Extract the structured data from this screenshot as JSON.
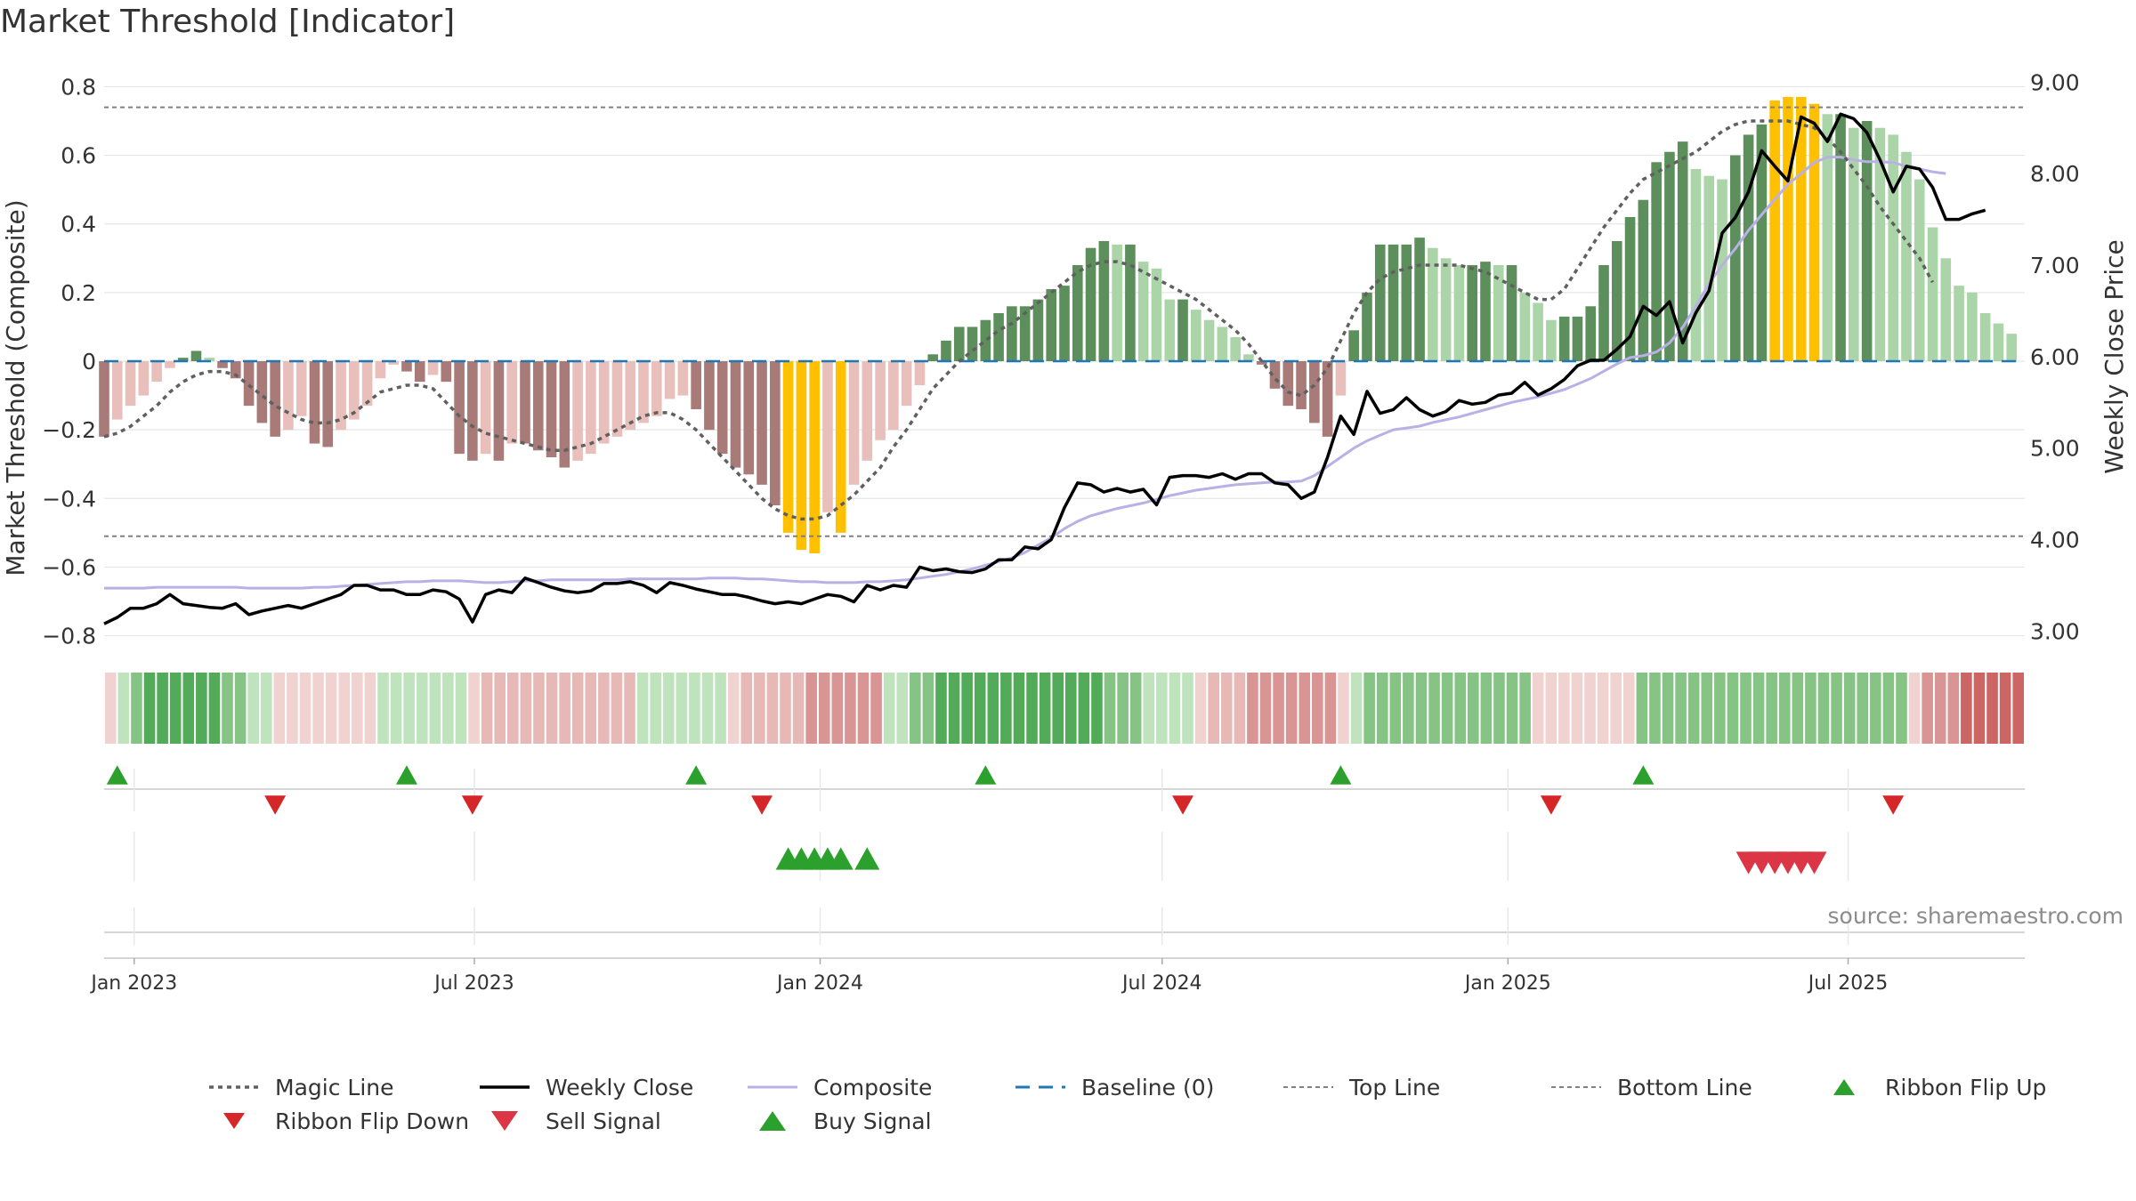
{
  "title": "Market Threshold [Indicator]",
  "source": "source: sharemaestro.com",
  "colors": {
    "bg": "#ffffff",
    "grid": "#e6e6e6",
    "baseline": "#1f77b4",
    "ref_line": "#808080",
    "magic_line": "#606060",
    "weekly_close": "#000000",
    "composite": "#b9b0e6",
    "bar_neg_strong": "#a87b78",
    "bar_neg_weak": "#e8bfbb",
    "bar_pos_strong": "#5c8f5c",
    "bar_pos_weak": "#abd5a8",
    "bar_extreme": "#ffc000",
    "buy": "#2ca02c",
    "sell": "#d62728"
  },
  "chart_data": {
    "type": "bar",
    "title": "Market Threshold [Indicator]",
    "ylabel": "Market Threshold (Composite)",
    "y2label": "Weekly Close Price",
    "ylim": [
      -0.84,
      0.84
    ],
    "y2lim": [
      2.8,
      9.1
    ],
    "yticks": [
      -0.8,
      -0.6,
      -0.4,
      -0.2,
      0,
      0.2,
      0.4,
      0.6,
      0.8
    ],
    "ytick_labels": [
      "−0.8",
      "−0.6",
      "−0.4",
      "−0.2",
      "0",
      "0.2",
      "0.4",
      "0.6",
      "0.8"
    ],
    "y2ticks": [
      3,
      4,
      5,
      6,
      7,
      8,
      9
    ],
    "y2tick_labels": [
      "3.00",
      "4.00",
      "5.00",
      "6.00",
      "7.00",
      "8.00",
      "9.00"
    ],
    "x_range": [
      "2022-12-16",
      "2025-10-03"
    ],
    "xticks": [
      "2023-01-01",
      "2023-07-01",
      "2024-01-01",
      "2024-07-01",
      "2025-01-01",
      "2025-07-01"
    ],
    "xtick_labels": [
      "Jan 2023",
      "Jul 2023",
      "Jan 2024",
      "Jul 2024",
      "Jan 2025",
      "Jul 2025"
    ],
    "grid": true,
    "legend_position": "bottom",
    "top_line": 0.74,
    "bottom_line": -0.51,
    "baseline": 0,
    "start_date": "2022-12-16",
    "bars": [
      -0.22,
      -0.17,
      -0.13,
      -0.1,
      -0.06,
      -0.02,
      0.01,
      0.03,
      0.01,
      -0.02,
      -0.05,
      -0.13,
      -0.18,
      -0.22,
      -0.2,
      -0.16,
      -0.24,
      -0.25,
      -0.2,
      -0.17,
      -0.13,
      -0.05,
      -0.01,
      -0.03,
      -0.06,
      -0.04,
      -0.06,
      -0.27,
      -0.29,
      -0.27,
      -0.29,
      -0.24,
      -0.24,
      -0.26,
      -0.28,
      -0.31,
      -0.29,
      -0.27,
      -0.24,
      -0.22,
      -0.2,
      -0.18,
      -0.16,
      -0.11,
      -0.1,
      -0.14,
      -0.2,
      -0.27,
      -0.31,
      -0.33,
      -0.36,
      -0.42,
      -0.5,
      -0.55,
      -0.56,
      -0.44,
      -0.5,
      -0.36,
      -0.29,
      -0.23,
      -0.2,
      -0.13,
      -0.07,
      0.02,
      0.06,
      0.1,
      0.1,
      0.12,
      0.14,
      0.16,
      0.16,
      0.18,
      0.21,
      0.22,
      0.28,
      0.33,
      0.35,
      0.34,
      0.34,
      0.29,
      0.27,
      0.18,
      0.18,
      0.15,
      0.12,
      0.1,
      0.07,
      0.02,
      -0.01,
      -0.08,
      -0.13,
      -0.14,
      -0.18,
      -0.22,
      -0.1,
      0.09,
      0.2,
      0.34,
      0.34,
      0.34,
      0.36,
      0.33,
      0.3,
      0.28,
      0.28,
      0.29,
      0.28,
      0.28,
      0.2,
      0.17,
      0.12,
      0.13,
      0.13,
      0.16,
      0.28,
      0.35,
      0.42,
      0.47,
      0.58,
      0.61,
      0.64,
      0.56,
      0.54,
      0.53,
      0.6,
      0.66,
      0.69,
      0.76,
      0.77,
      0.77,
      0.75,
      0.72,
      0.72,
      0.68,
      0.7,
      0.68,
      0.66,
      0.61,
      0.53,
      0.39,
      0.3,
      0.22,
      0.2,
      0.14,
      0.11,
      0.08
    ],
    "series": [
      {
        "name": "Magic Line",
        "values": [
          -0.22,
          -0.21,
          -0.19,
          -0.16,
          -0.13,
          -0.09,
          -0.06,
          -0.04,
          -0.03,
          -0.03,
          -0.04,
          -0.07,
          -0.1,
          -0.13,
          -0.15,
          -0.17,
          -0.18,
          -0.18,
          -0.17,
          -0.15,
          -0.12,
          -0.09,
          -0.08,
          -0.07,
          -0.07,
          -0.08,
          -0.12,
          -0.16,
          -0.19,
          -0.21,
          -0.22,
          -0.23,
          -0.24,
          -0.25,
          -0.26,
          -0.26,
          -0.25,
          -0.24,
          -0.22,
          -0.2,
          -0.18,
          -0.16,
          -0.15,
          -0.15,
          -0.17,
          -0.2,
          -0.24,
          -0.28,
          -0.32,
          -0.36,
          -0.4,
          -0.43,
          -0.45,
          -0.46,
          -0.46,
          -0.45,
          -0.42,
          -0.39,
          -0.35,
          -0.31,
          -0.25,
          -0.2,
          -0.14,
          -0.08,
          -0.04,
          0.0,
          0.03,
          0.06,
          0.09,
          0.11,
          0.14,
          0.17,
          0.2,
          0.23,
          0.26,
          0.28,
          0.29,
          0.29,
          0.28,
          0.26,
          0.24,
          0.22,
          0.2,
          0.18,
          0.15,
          0.12,
          0.09,
          0.05,
          0.0,
          -0.05,
          -0.09,
          -0.1,
          -0.07,
          -0.02,
          0.06,
          0.14,
          0.2,
          0.24,
          0.26,
          0.27,
          0.28,
          0.28,
          0.28,
          0.28,
          0.27,
          0.26,
          0.24,
          0.22,
          0.2,
          0.18,
          0.18,
          0.21,
          0.27,
          0.33,
          0.39,
          0.44,
          0.49,
          0.53,
          0.55,
          0.57,
          0.59,
          0.61,
          0.64,
          0.67,
          0.69,
          0.7,
          0.7,
          0.7,
          0.7,
          0.69,
          0.68,
          0.65,
          0.61,
          0.56,
          0.51,
          0.45,
          0.4,
          0.35,
          0.3,
          0.23
        ]
      },
      {
        "name": "Weekly Close",
        "axis": "right",
        "values": [
          3.08,
          3.15,
          3.25,
          3.25,
          3.3,
          3.4,
          3.3,
          3.28,
          3.26,
          3.25,
          3.3,
          3.18,
          3.22,
          3.25,
          3.28,
          3.25,
          3.3,
          3.35,
          3.4,
          3.5,
          3.5,
          3.45,
          3.45,
          3.4,
          3.4,
          3.45,
          3.43,
          3.35,
          3.1,
          3.4,
          3.45,
          3.42,
          3.58,
          3.53,
          3.48,
          3.44,
          3.42,
          3.44,
          3.52,
          3.52,
          3.54,
          3.5,
          3.42,
          3.53,
          3.5,
          3.46,
          3.43,
          3.4,
          3.4,
          3.37,
          3.33,
          3.3,
          3.32,
          3.3,
          3.35,
          3.4,
          3.38,
          3.32,
          3.5,
          3.45,
          3.5,
          3.48,
          3.7,
          3.66,
          3.68,
          3.65,
          3.64,
          3.68,
          3.78,
          3.78,
          3.92,
          3.9,
          4.0,
          4.35,
          4.62,
          4.6,
          4.52,
          4.56,
          4.52,
          4.55,
          4.38,
          4.68,
          4.7,
          4.7,
          4.68,
          4.72,
          4.66,
          4.72,
          4.72,
          4.62,
          4.6,
          4.45,
          4.52,
          4.9,
          5.35,
          5.15,
          5.62,
          5.38,
          5.42,
          5.55,
          5.42,
          5.35,
          5.4,
          5.52,
          5.48,
          5.5,
          5.58,
          5.6,
          5.72,
          5.58,
          5.65,
          5.75,
          5.9,
          5.96,
          5.96,
          6.08,
          6.22,
          6.55,
          6.45,
          6.6,
          6.15,
          6.48,
          6.72,
          7.35,
          7.52,
          7.8,
          8.25,
          8.08,
          7.92,
          8.62,
          8.55,
          8.35,
          8.65,
          8.6,
          8.45,
          8.15,
          7.8,
          8.08,
          8.05,
          7.85,
          7.5,
          7.5,
          7.56,
          7.6
        ]
      },
      {
        "name": "Composite",
        "axis": "right",
        "values": [
          3.47,
          3.47,
          3.47,
          3.47,
          3.48,
          3.48,
          3.48,
          3.48,
          3.48,
          3.48,
          3.48,
          3.47,
          3.47,
          3.47,
          3.47,
          3.47,
          3.48,
          3.48,
          3.49,
          3.5,
          3.51,
          3.52,
          3.53,
          3.54,
          3.54,
          3.55,
          3.55,
          3.55,
          3.54,
          3.53,
          3.53,
          3.54,
          3.55,
          3.55,
          3.56,
          3.56,
          3.56,
          3.56,
          3.56,
          3.56,
          3.57,
          3.57,
          3.57,
          3.57,
          3.57,
          3.57,
          3.58,
          3.58,
          3.58,
          3.57,
          3.57,
          3.56,
          3.55,
          3.54,
          3.54,
          3.53,
          3.53,
          3.53,
          3.54,
          3.54,
          3.55,
          3.56,
          3.58,
          3.6,
          3.62,
          3.65,
          3.68,
          3.72,
          3.76,
          3.8,
          3.86,
          3.94,
          4.02,
          4.12,
          4.2,
          4.26,
          4.3,
          4.34,
          4.37,
          4.4,
          4.44,
          4.48,
          4.51,
          4.54,
          4.56,
          4.58,
          4.6,
          4.61,
          4.62,
          4.63,
          4.63,
          4.64,
          4.7,
          4.8,
          4.9,
          5.0,
          5.08,
          5.14,
          5.2,
          5.22,
          5.24,
          5.28,
          5.31,
          5.34,
          5.38,
          5.42,
          5.46,
          5.5,
          5.53,
          5.56,
          5.6,
          5.64,
          5.7,
          5.76,
          5.84,
          5.92,
          5.99,
          6.01,
          6.05,
          6.15,
          6.32,
          6.55,
          6.8,
          7.0,
          7.18,
          7.38,
          7.55,
          7.72,
          7.88,
          8.0,
          8.12,
          8.18,
          8.18,
          8.15,
          8.13,
          8.13,
          8.12,
          8.08,
          8.05,
          8.02,
          8.0
        ]
      }
    ],
    "ribbon": [
      "pale-red",
      "pale-green",
      "mid-green",
      "green",
      "green",
      "green",
      "green",
      "green",
      "green",
      "mid-green",
      "mid-green",
      "pale-green",
      "pale-green",
      "pale-red",
      "pale-red",
      "pale-red",
      "pale-red",
      "pale-red",
      "pale-red",
      "pale-red",
      "pale-red",
      "pale-green",
      "pale-green",
      "pale-green",
      "pale-green",
      "pale-green",
      "pale-green",
      "pale-green",
      "pale-red",
      "light-red",
      "light-red",
      "light-red",
      "light-red",
      "light-red",
      "light-red",
      "light-red",
      "light-red",
      "light-red",
      "light-red",
      "light-red",
      "light-red",
      "pale-green",
      "pale-green",
      "pale-green",
      "pale-green",
      "pale-green",
      "pale-green",
      "pale-green",
      "pale-red",
      "light-red",
      "light-red",
      "light-red",
      "light-red",
      "light-red",
      "mid-red",
      "mid-red",
      "mid-red",
      "mid-red",
      "mid-red",
      "mid-red",
      "pale-green",
      "pale-green",
      "mid-green",
      "mid-green",
      "green",
      "green",
      "green",
      "green",
      "green",
      "green",
      "green",
      "green",
      "green",
      "green",
      "green",
      "green",
      "green",
      "mid-green",
      "mid-green",
      "mid-green",
      "pale-green",
      "pale-green",
      "pale-green",
      "pale-green",
      "pale-red",
      "light-red",
      "light-red",
      "light-red",
      "mid-red",
      "mid-red",
      "mid-red",
      "mid-red",
      "mid-red",
      "mid-red",
      "mid-red",
      "pale-red",
      "pale-green",
      "mid-green",
      "mid-green",
      "mid-green",
      "mid-green",
      "mid-green",
      "mid-green",
      "mid-green",
      "mid-green",
      "mid-green",
      "mid-green",
      "mid-green",
      "mid-green",
      "mid-green",
      "pale-red",
      "pale-red",
      "pale-red",
      "pale-red",
      "pale-red",
      "pale-red",
      "pale-red",
      "pale-red",
      "mid-green",
      "mid-green",
      "mid-green",
      "mid-green",
      "mid-green",
      "mid-green",
      "mid-green",
      "mid-green",
      "mid-green",
      "mid-green",
      "mid-green",
      "mid-green",
      "mid-green",
      "mid-green",
      "mid-green",
      "mid-green",
      "mid-green",
      "mid-green",
      "mid-green",
      "mid-green",
      "mid-green",
      "pale-red",
      "mid-red",
      "mid-red",
      "mid-red",
      "strong-red",
      "strong-red",
      "strong-red",
      "strong-red",
      "strong-red"
    ],
    "ribbon_flip_up": [
      "2022-12-23",
      "2023-05-26",
      "2023-10-27",
      "2024-03-29",
      "2024-10-04",
      "2025-03-14"
    ],
    "ribbon_flip_down": [
      "2023-03-17",
      "2023-06-30",
      "2023-12-01",
      "2024-07-12",
      "2025-01-24",
      "2025-07-25"
    ],
    "buy_signal": [
      "2023-12-15",
      "2023-12-22",
      "2023-12-29",
      "2024-01-05",
      "2024-01-12",
      "2024-01-26"
    ],
    "sell_signal": [
      "2025-05-09",
      "2025-05-16",
      "2025-05-23",
      "2025-05-30",
      "2025-06-06",
      "2025-06-13"
    ],
    "legend": [
      "Magic Line",
      "Weekly Close",
      "Composite",
      "Baseline (0)",
      "Top Line",
      "Bottom Line",
      "Ribbon Flip Up",
      "Ribbon Flip Down",
      "Sell Signal",
      "Buy Signal"
    ]
  }
}
